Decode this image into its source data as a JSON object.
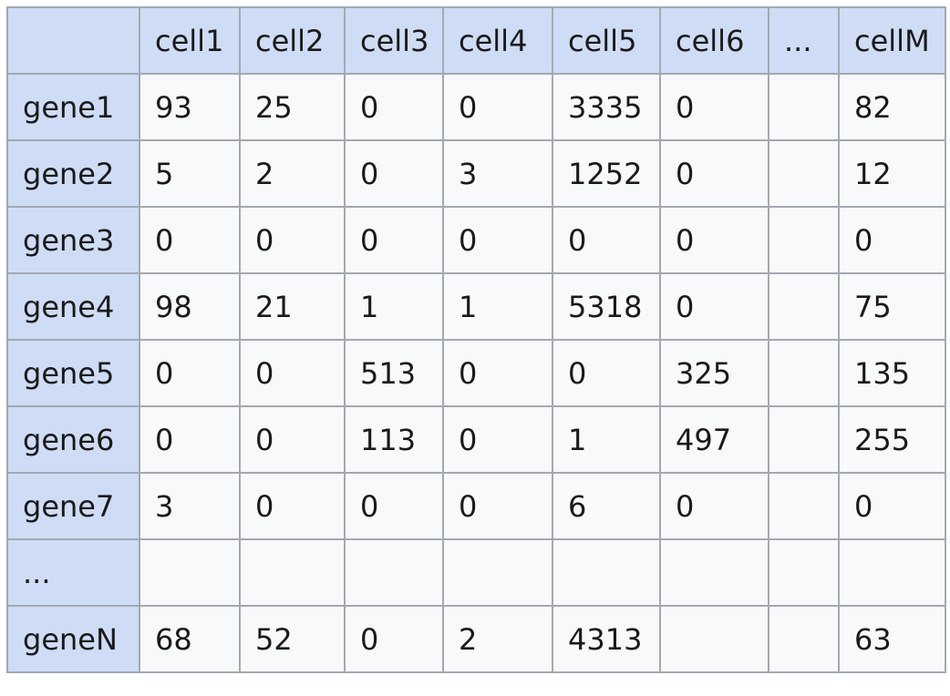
{
  "colors": {
    "header_bg": "#cedcf6",
    "cell_bg": "#f8f9fa",
    "border": "#a3a9b1",
    "text": "#1a1a1a"
  },
  "table": {
    "corner": "",
    "columns": [
      "cell1",
      "cell2",
      "cell3",
      "cell4",
      "cell5",
      "cell6",
      "...",
      "cellM"
    ],
    "rows": [
      {
        "label": "gene1",
        "values": [
          "93",
          "25",
          "0",
          "0",
          "3335",
          "0",
          "",
          "82"
        ]
      },
      {
        "label": "gene2",
        "values": [
          "5",
          "2",
          "0",
          "3",
          "1252",
          "0",
          "",
          "12"
        ]
      },
      {
        "label": "gene3",
        "values": [
          "0",
          "0",
          "0",
          "0",
          "0",
          "0",
          "",
          "0"
        ]
      },
      {
        "label": "gene4",
        "values": [
          "98",
          "21",
          "1",
          "1",
          "5318",
          "0",
          "",
          "75"
        ]
      },
      {
        "label": "gene5",
        "values": [
          "0",
          "0",
          "513",
          "0",
          "0",
          "325",
          "",
          "135"
        ]
      },
      {
        "label": "gene6",
        "values": [
          "0",
          "0",
          "113",
          "0",
          "1",
          "497",
          "",
          "255"
        ]
      },
      {
        "label": "gene7",
        "values": [
          "3",
          "0",
          "0",
          "0",
          "6",
          "0",
          "",
          "0"
        ]
      },
      {
        "label": "...",
        "values": [
          "",
          "",
          "",
          "",
          "",
          "",
          "",
          ""
        ]
      },
      {
        "label": "geneN",
        "values": [
          "68",
          "52",
          "0",
          "2",
          "4313",
          "",
          "",
          "63"
        ]
      }
    ]
  }
}
